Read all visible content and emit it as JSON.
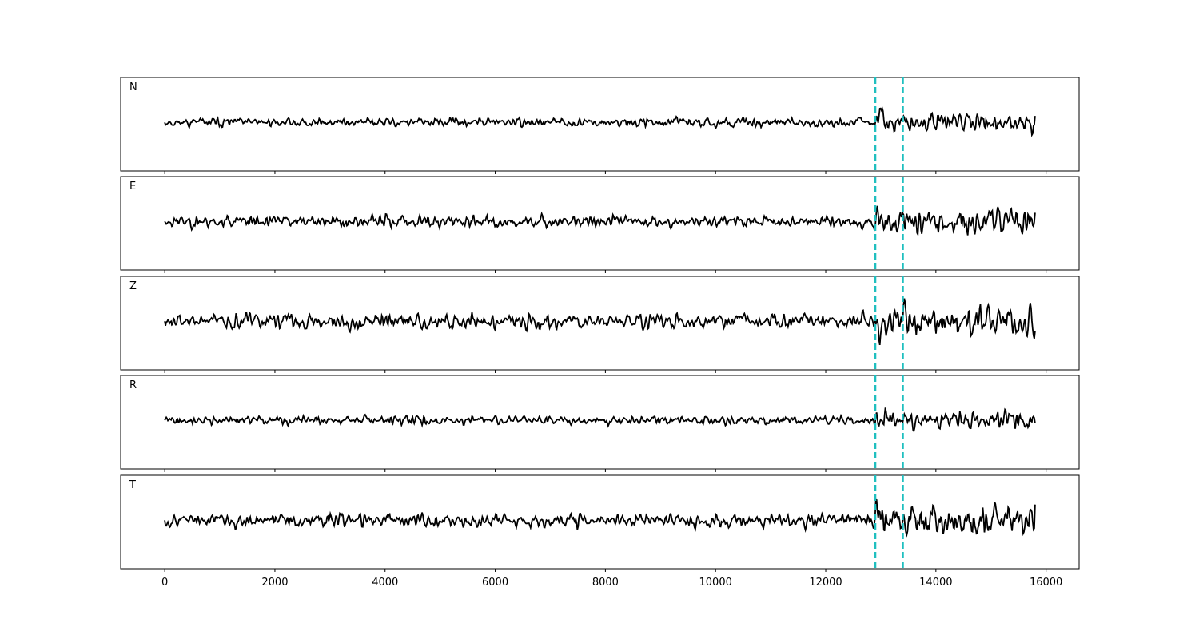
{
  "chart_data": {
    "type": "line",
    "panels": [
      {
        "label": "N",
        "seed": 11,
        "noise": 0.75,
        "scale": 1.0,
        "end_offset": 0.55
      },
      {
        "label": "E",
        "seed": 23,
        "noise": 1.0,
        "scale": 1.0,
        "end_offset": 0.75
      },
      {
        "label": "Z",
        "seed": 37,
        "noise": 1.35,
        "scale": 1.0,
        "end_offset": -0.85
      },
      {
        "label": "R",
        "seed": 41,
        "noise": 0.7,
        "scale": 1.0,
        "end_offset": -0.25
      },
      {
        "label": "T",
        "seed": 53,
        "noise": 1.15,
        "scale": 1.0,
        "end_offset": 1.35
      }
    ],
    "x_range": [
      0,
      15800
    ],
    "xlim": [
      -800,
      16600
    ],
    "xticks": [
      0,
      2000,
      4000,
      6000,
      8000,
      10000,
      12000,
      14000,
      16000
    ],
    "xtick_labels": [
      "0",
      "2000",
      "4000",
      "6000",
      "8000",
      "10000",
      "12000",
      "14000",
      "16000"
    ],
    "picks": [
      12900,
      13400
    ],
    "event_start": 12900,
    "series_color": "#000000",
    "pick_color": "#1fbfbf",
    "grid": false,
    "legend": "none"
  }
}
